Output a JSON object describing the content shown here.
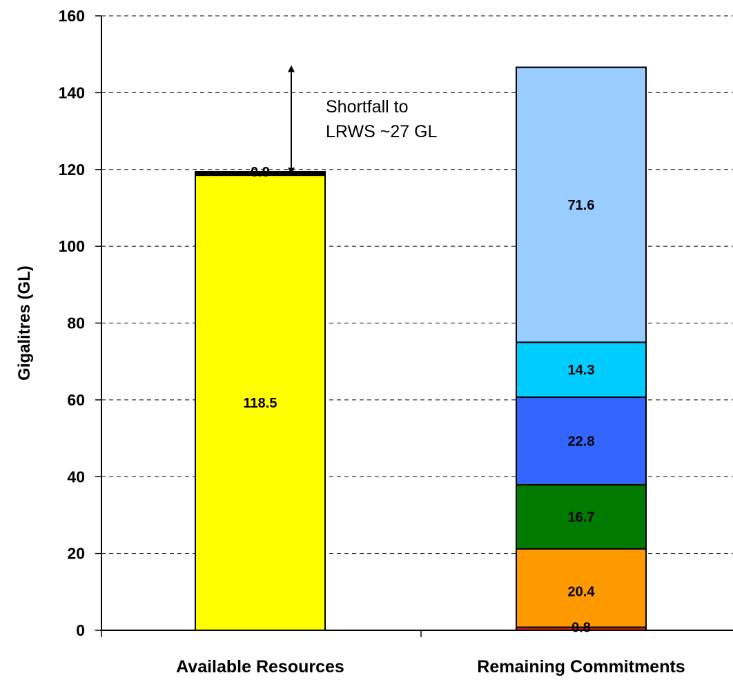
{
  "chart_data": {
    "type": "bar",
    "stacked": true,
    "title": "",
    "xlabel": "",
    "ylabel": "Gigalitres (GL)",
    "ylim": [
      0,
      160
    ],
    "yticks": [
      "0",
      "20",
      "40",
      "60",
      "80",
      "100",
      "120",
      "140",
      "160"
    ],
    "grid": true,
    "legend": "none",
    "categories": [
      "Available Resources",
      "Remaining Commitments"
    ],
    "stacks": [
      {
        "category": "Available Resources",
        "segments": [
          {
            "value": 118.5,
            "label": "118.5",
            "color": "#ffff00"
          },
          {
            "value": 0.9,
            "label": "0.9",
            "color": "#000000"
          }
        ]
      },
      {
        "category": "Remaining Commitments",
        "segments": [
          {
            "value": 0.8,
            "label": "0.8",
            "color": "#cc1f1f"
          },
          {
            "value": 20.4,
            "label": "20.4",
            "color": "#ff9900"
          },
          {
            "value": 16.7,
            "label": "16.7",
            "color": "#007a00"
          },
          {
            "value": 22.8,
            "label": "22.8",
            "color": "#3366ff"
          },
          {
            "value": 14.3,
            "label": "14.3",
            "color": "#00ccff"
          },
          {
            "value": 71.6,
            "label": "71.6",
            "color": "#99ccff"
          }
        ]
      }
    ],
    "annotation": {
      "lines": [
        "Shortfall to",
        "LRWS ~27 GL"
      ],
      "from": 119.4,
      "to": 146.6
    }
  }
}
